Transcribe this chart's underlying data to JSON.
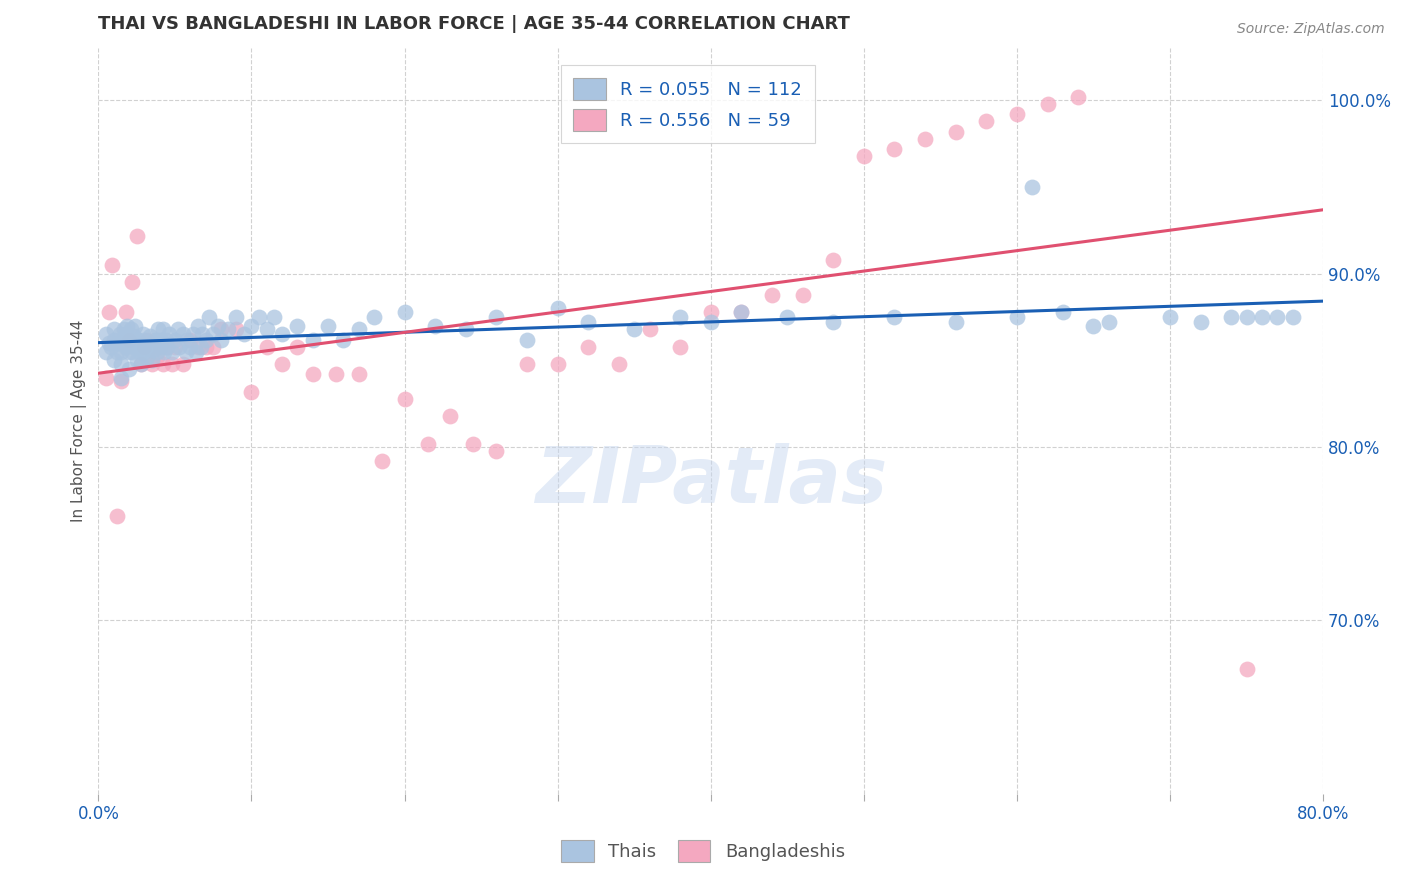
{
  "title": "THAI VS BANGLADESHI IN LABOR FORCE | AGE 35-44 CORRELATION CHART",
  "source": "Source: ZipAtlas.com",
  "ylabel": "In Labor Force | Age 35-44",
  "xmin": 0.0,
  "xmax": 0.8,
  "ymin": 0.6,
  "ymax": 1.03,
  "xtick_labels_show": [
    "0.0%",
    "80.0%"
  ],
  "xtick_vals_show": [
    0.0,
    0.8
  ],
  "xtick_vals_grid": [
    0.0,
    0.1,
    0.2,
    0.3,
    0.4,
    0.5,
    0.6,
    0.7,
    0.8
  ],
  "ytick_labels": [
    "70.0%",
    "80.0%",
    "90.0%",
    "100.0%"
  ],
  "ytick_vals": [
    0.7,
    0.8,
    0.9,
    1.0
  ],
  "ytick_vals_grid": [
    0.7,
    0.8,
    0.9,
    1.0
  ],
  "watermark": "ZIPatlas",
  "blue_color": "#aac4e0",
  "pink_color": "#f4a8c0",
  "blue_edge": "#7bafd4",
  "pink_edge": "#e890a8",
  "line_blue": "#1a5fb4",
  "line_pink": "#e05070",
  "legend_blue_patch": "#aac4e0",
  "legend_pink_patch": "#f4a8c0",
  "legend_text_blue_R": "0.055",
  "legend_text_blue_N": "112",
  "legend_text_pink_R": "0.556",
  "legend_text_pink_N": "59",
  "thai_scatter_x": [
    0.005,
    0.005,
    0.007,
    0.008,
    0.01,
    0.01,
    0.01,
    0.012,
    0.013,
    0.014,
    0.015,
    0.015,
    0.015,
    0.016,
    0.017,
    0.018,
    0.018,
    0.019,
    0.02,
    0.02,
    0.021,
    0.021,
    0.022,
    0.022,
    0.023,
    0.023,
    0.024,
    0.025,
    0.025,
    0.026,
    0.027,
    0.028,
    0.028,
    0.029,
    0.03,
    0.03,
    0.031,
    0.032,
    0.033,
    0.034,
    0.035,
    0.036,
    0.037,
    0.038,
    0.038,
    0.039,
    0.04,
    0.041,
    0.042,
    0.043,
    0.044,
    0.045,
    0.046,
    0.048,
    0.05,
    0.052,
    0.053,
    0.055,
    0.057,
    0.058,
    0.06,
    0.062,
    0.064,
    0.065,
    0.067,
    0.068,
    0.07,
    0.072,
    0.075,
    0.078,
    0.08,
    0.085,
    0.09,
    0.095,
    0.1,
    0.105,
    0.11,
    0.115,
    0.12,
    0.13,
    0.14,
    0.15,
    0.16,
    0.17,
    0.18,
    0.2,
    0.22,
    0.24,
    0.26,
    0.28,
    0.3,
    0.32,
    0.35,
    0.38,
    0.4,
    0.42,
    0.45,
    0.48,
    0.52,
    0.56,
    0.6,
    0.63,
    0.66,
    0.7,
    0.72,
    0.74,
    0.75,
    0.76,
    0.77,
    0.78,
    0.61,
    0.65
  ],
  "thai_scatter_y": [
    0.855,
    0.865,
    0.86,
    0.858,
    0.85,
    0.862,
    0.868,
    0.855,
    0.86,
    0.865,
    0.84,
    0.848,
    0.855,
    0.862,
    0.868,
    0.858,
    0.865,
    0.87,
    0.845,
    0.855,
    0.862,
    0.868,
    0.855,
    0.862,
    0.858,
    0.864,
    0.87,
    0.85,
    0.858,
    0.862,
    0.855,
    0.848,
    0.858,
    0.865,
    0.855,
    0.862,
    0.858,
    0.852,
    0.858,
    0.864,
    0.85,
    0.856,
    0.862,
    0.855,
    0.862,
    0.868,
    0.858,
    0.862,
    0.868,
    0.855,
    0.862,
    0.858,
    0.865,
    0.855,
    0.862,
    0.868,
    0.858,
    0.865,
    0.855,
    0.862,
    0.858,
    0.865,
    0.855,
    0.87,
    0.858,
    0.865,
    0.862,
    0.875,
    0.865,
    0.87,
    0.862,
    0.868,
    0.875,
    0.865,
    0.87,
    0.875,
    0.868,
    0.875,
    0.865,
    0.87,
    0.862,
    0.87,
    0.862,
    0.868,
    0.875,
    0.878,
    0.87,
    0.868,
    0.875,
    0.862,
    0.88,
    0.872,
    0.868,
    0.875,
    0.872,
    0.878,
    0.875,
    0.872,
    0.875,
    0.872,
    0.875,
    0.878,
    0.872,
    0.875,
    0.872,
    0.875,
    0.875,
    0.875,
    0.875,
    0.875,
    0.95,
    0.87
  ],
  "bang_scatter_x": [
    0.005,
    0.007,
    0.009,
    0.012,
    0.015,
    0.018,
    0.02,
    0.022,
    0.025,
    0.028,
    0.03,
    0.032,
    0.035,
    0.038,
    0.04,
    0.042,
    0.045,
    0.048,
    0.05,
    0.055,
    0.06,
    0.065,
    0.07,
    0.075,
    0.08,
    0.09,
    0.1,
    0.11,
    0.12,
    0.13,
    0.14,
    0.155,
    0.17,
    0.185,
    0.2,
    0.215,
    0.23,
    0.245,
    0.26,
    0.28,
    0.3,
    0.32,
    0.34,
    0.36,
    0.38,
    0.4,
    0.42,
    0.44,
    0.46,
    0.48,
    0.5,
    0.52,
    0.54,
    0.56,
    0.58,
    0.6,
    0.62,
    0.64,
    0.75
  ],
  "bang_scatter_y": [
    0.84,
    0.878,
    0.905,
    0.76,
    0.838,
    0.878,
    0.862,
    0.895,
    0.922,
    0.848,
    0.858,
    0.862,
    0.848,
    0.852,
    0.858,
    0.848,
    0.858,
    0.848,
    0.858,
    0.848,
    0.862,
    0.858,
    0.858,
    0.858,
    0.868,
    0.868,
    0.832,
    0.858,
    0.848,
    0.858,
    0.842,
    0.842,
    0.842,
    0.792,
    0.828,
    0.802,
    0.818,
    0.802,
    0.798,
    0.848,
    0.848,
    0.858,
    0.848,
    0.868,
    0.858,
    0.878,
    0.878,
    0.888,
    0.888,
    0.908,
    0.968,
    0.972,
    0.978,
    0.982,
    0.988,
    0.992,
    0.998,
    1.002,
    0.672
  ]
}
